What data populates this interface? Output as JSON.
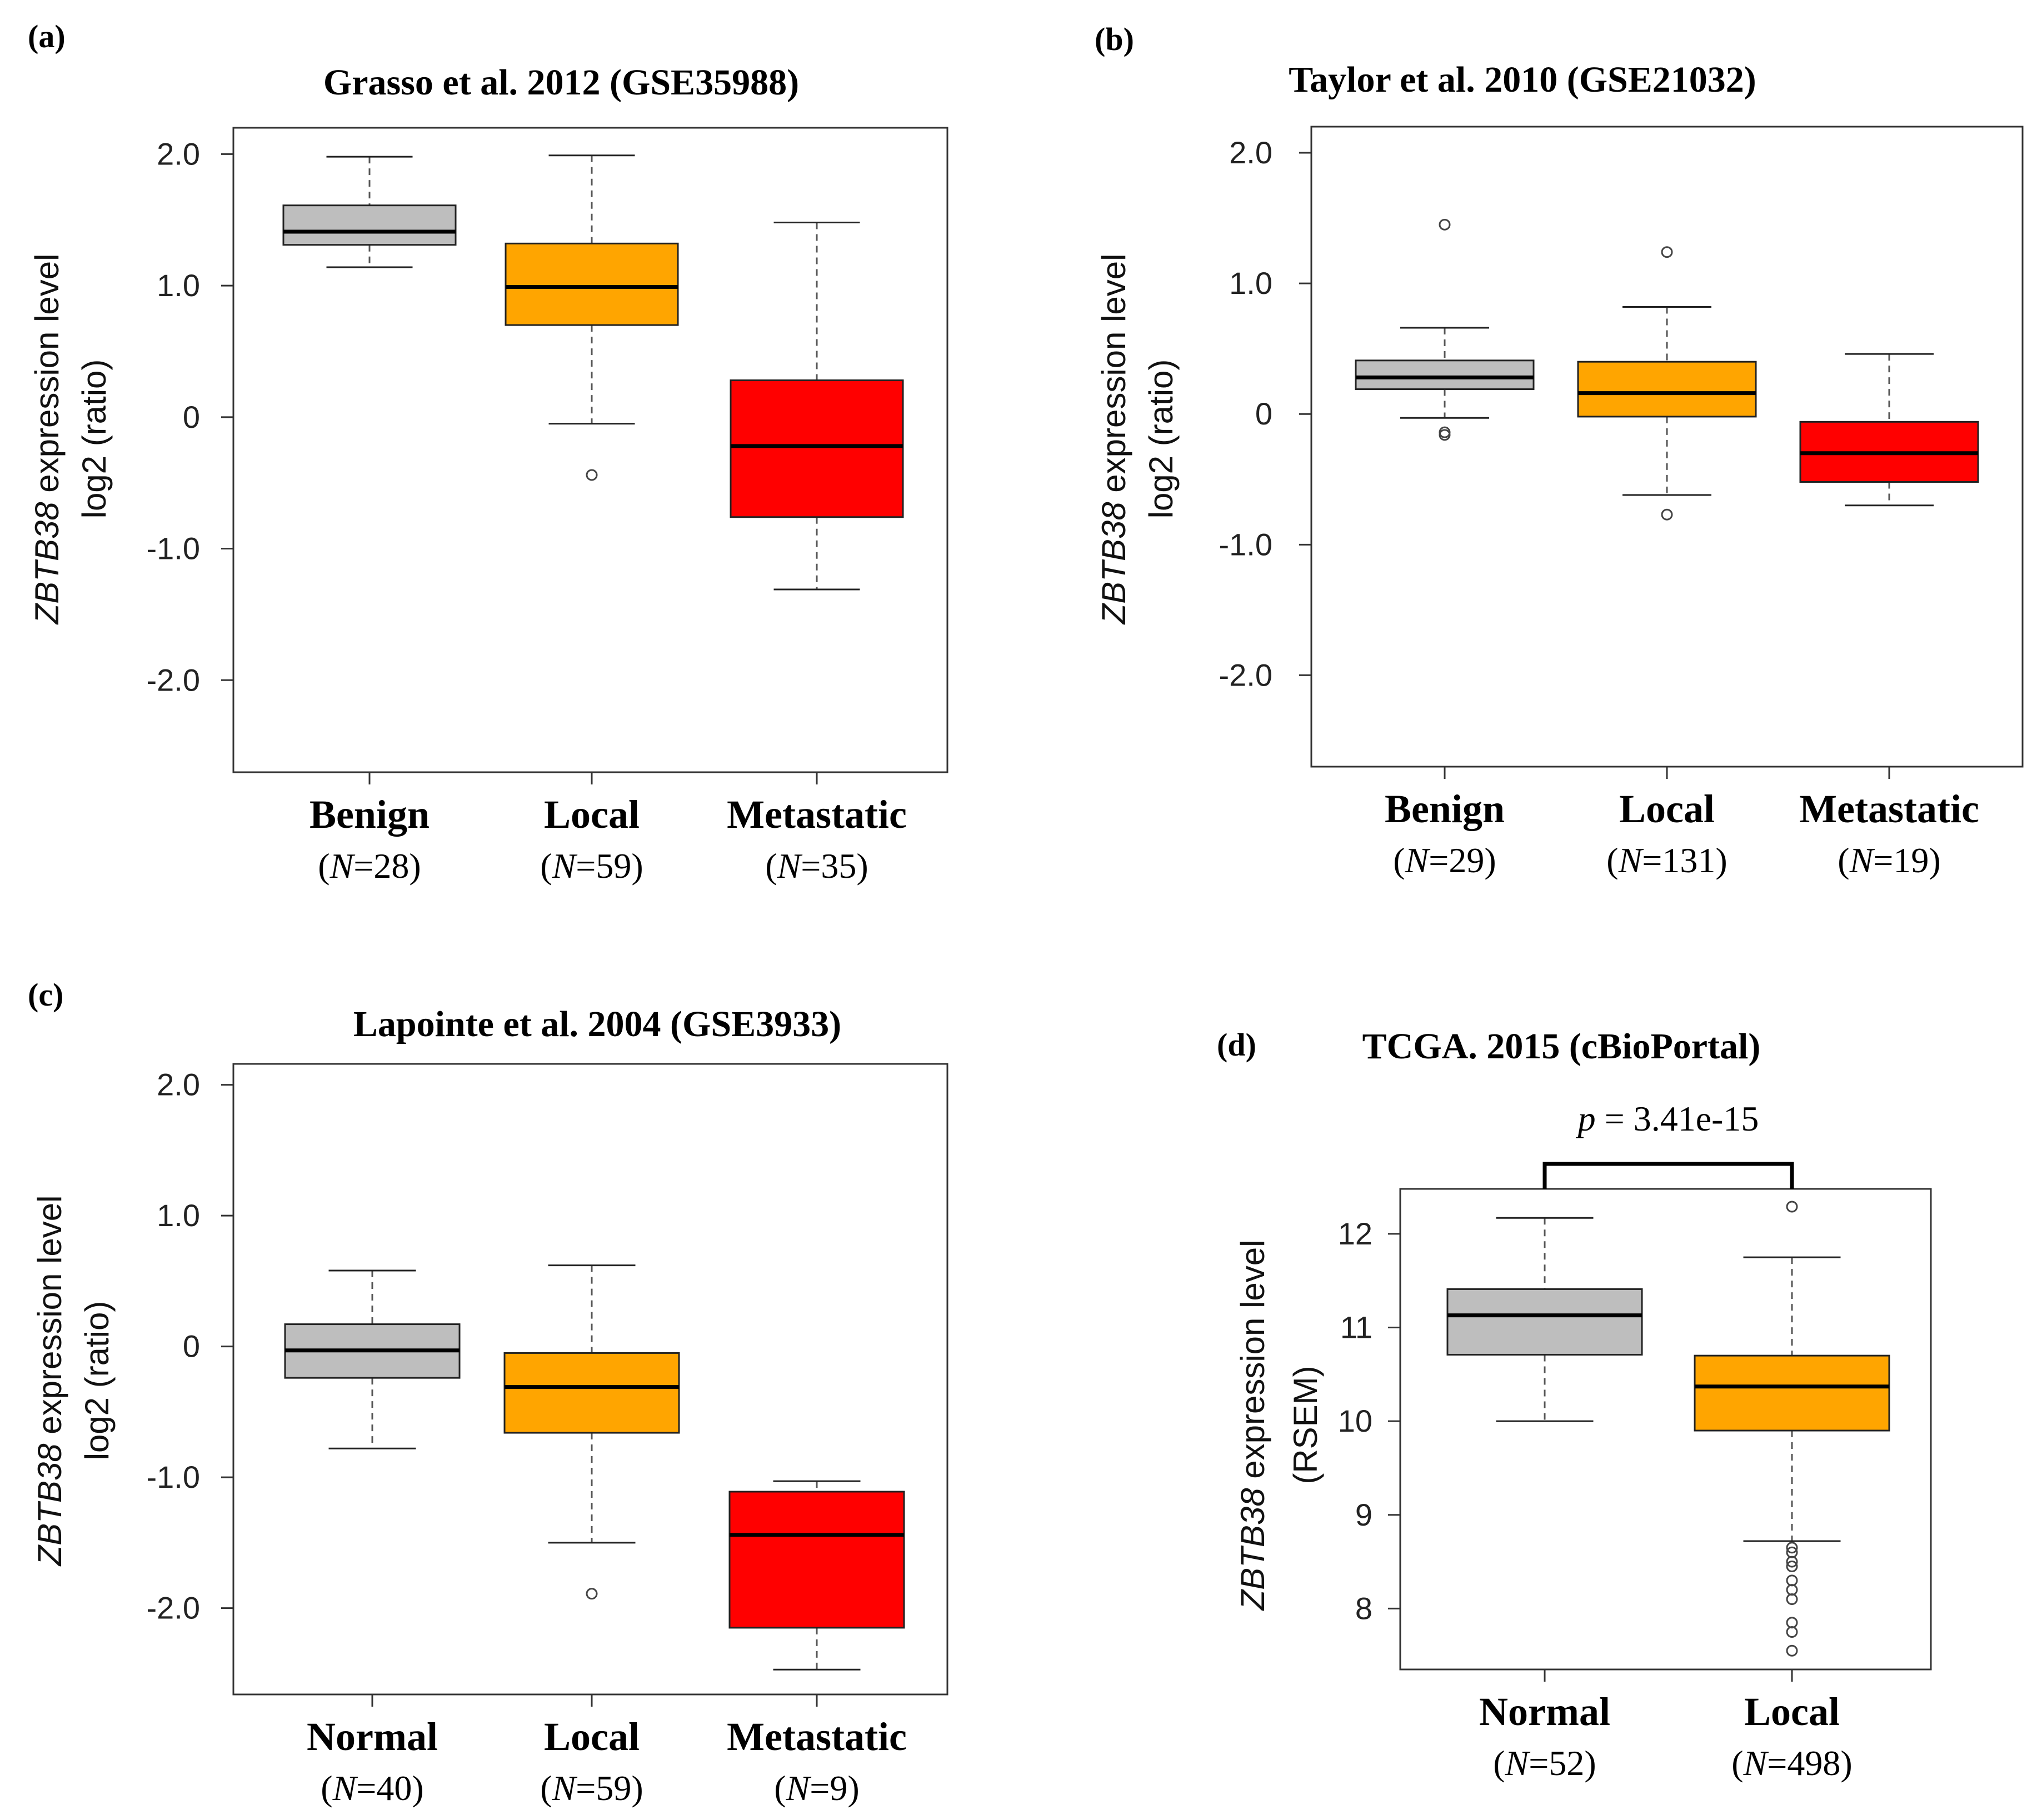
{
  "colors": {
    "benign": "#bebebe",
    "normal": "#bebebe",
    "local": "#ffa500",
    "metastatic": "#ff0000",
    "frame": "#333333",
    "whisker": "#555555"
  },
  "chart_data": [
    {
      "type": "box",
      "panel": "(a)",
      "title": "Grasso et al. 2012 (GSE35988)",
      "ylabel_gene": "ZBTB38",
      "ylabel_rest": "expression level",
      "ylabel_line2": "log2 (ratio)",
      "ylim": [
        -2.7,
        2.2
      ],
      "yticks": [
        2.0,
        1.0,
        0,
        -1.0,
        -2.0
      ],
      "ytick_labels": [
        "2.0",
        "1.0",
        "0",
        "-1.0",
        "-2.0"
      ],
      "series": [
        {
          "name": "Benign",
          "n_label": "N",
          "n_value": "=28",
          "color": "#bebebe",
          "min": 1.14,
          "q1": 1.31,
          "median": 1.41,
          "q3": 1.61,
          "max": 1.98,
          "outliers": []
        },
        {
          "name": "Local",
          "n_label": "N",
          "n_value": "=59",
          "color": "#ffa500",
          "min": -0.05,
          "q1": 0.7,
          "median": 0.99,
          "q3": 1.32,
          "max": 1.99,
          "outliers": [
            -0.44
          ]
        },
        {
          "name": "Metastatic",
          "n_label": "N",
          "n_value": "=35",
          "color": "#ff0000",
          "min": -1.31,
          "q1": -0.76,
          "median": -0.22,
          "q3": 0.28,
          "max": 1.48,
          "outliers": []
        }
      ]
    },
    {
      "type": "box",
      "panel": "(b)",
      "title": "Taylor et al. 2010 (GSE21032)",
      "ylabel_gene": "ZBTB38",
      "ylabel_rest": "expression level",
      "ylabel_line2": "log2 (ratio)",
      "ylim": [
        -2.7,
        2.2
      ],
      "yticks": [
        2.0,
        1.0,
        0,
        -1.0,
        -2.0
      ],
      "ytick_labels": [
        "2.0",
        "1.0",
        "0",
        "-1.0",
        "-2.0"
      ],
      "series": [
        {
          "name": "Benign",
          "n_label": "N",
          "n_value": "=29",
          "color": "#bebebe",
          "min": -0.03,
          "q1": 0.19,
          "median": 0.28,
          "q3": 0.41,
          "max": 0.66,
          "outliers": [
            1.45,
            -0.14,
            -0.16
          ]
        },
        {
          "name": "Local",
          "n_label": "N",
          "n_value": "=131",
          "color": "#ffa500",
          "min": -0.62,
          "q1": -0.02,
          "median": 0.16,
          "q3": 0.4,
          "max": 0.82,
          "outliers": [
            1.24,
            -0.77
          ]
        },
        {
          "name": "Metastatic",
          "n_label": "N",
          "n_value": "=19",
          "color": "#ff0000",
          "min": -0.7,
          "q1": -0.52,
          "median": -0.3,
          "q3": -0.06,
          "max": 0.46,
          "outliers": []
        }
      ]
    },
    {
      "type": "box",
      "panel": "(c)",
      "title": "Lapointe et al. 2004 (GSE3933)",
      "ylabel_gene": "ZBTB38",
      "ylabel_rest": "expression level",
      "ylabel_line2": "log2 (ratio)",
      "ylim": [
        -2.66,
        2.16
      ],
      "yticks": [
        2.0,
        1.0,
        0,
        -1.0,
        -2.0
      ],
      "ytick_labels": [
        "2.0",
        "1.0",
        "0",
        "-1.0",
        "-2.0"
      ],
      "series": [
        {
          "name": "Normal",
          "n_label": "N",
          "n_value": "=40",
          "color": "#bebebe",
          "min": -0.78,
          "q1": -0.24,
          "median": -0.03,
          "q3": 0.17,
          "max": 0.58,
          "outliers": []
        },
        {
          "name": "Local",
          "n_label": "N",
          "n_value": "=59",
          "color": "#ffa500",
          "min": -1.5,
          "q1": -0.66,
          "median": -0.31,
          "q3": -0.05,
          "max": 0.62,
          "outliers": [
            -1.89
          ]
        },
        {
          "name": "Metastatic",
          "n_label": "N",
          "n_value": "=9",
          "color": "#ff0000",
          "min": -2.47,
          "q1": -2.15,
          "median": -1.44,
          "q3": -1.11,
          "max": -1.03,
          "outliers": []
        }
      ]
    },
    {
      "type": "box",
      "panel": "(d)",
      "title": "TCGA. 2015 (cBioPortal)",
      "ylabel_gene": "ZBTB38",
      "ylabel_rest": "expression level",
      "ylabel_line2": "(RSEM)",
      "ylim": [
        7.35,
        12.48
      ],
      "yticks": [
        12,
        11,
        10,
        9,
        8
      ],
      "ytick_labels": [
        "12",
        "11",
        "10",
        "9",
        "8"
      ],
      "p_label": "p",
      "p_value": " = 3.41e-15",
      "series": [
        {
          "name": "Normal",
          "n_label": "N",
          "n_value": "=52",
          "color": "#bebebe",
          "min": 10.0,
          "q1": 10.71,
          "median": 11.13,
          "q3": 11.41,
          "max": 12.17,
          "outliers": []
        },
        {
          "name": "Local",
          "n_label": "N",
          "n_value": "=498",
          "color": "#ffa500",
          "min": 8.72,
          "q1": 9.9,
          "median": 10.37,
          "q3": 10.7,
          "max": 11.75,
          "outliers": [
            12.29,
            8.65,
            8.6,
            8.5,
            8.45,
            8.3,
            8.2,
            8.1,
            7.85,
            7.75,
            7.55
          ]
        }
      ]
    }
  ]
}
